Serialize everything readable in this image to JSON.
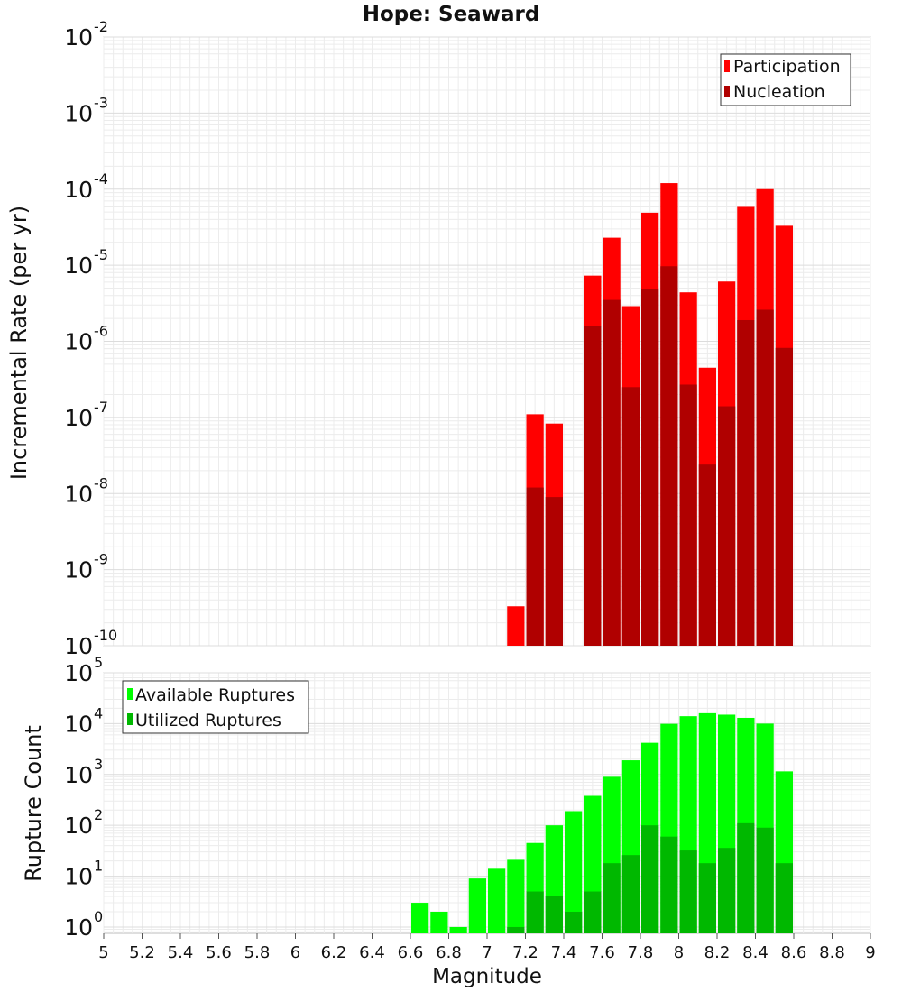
{
  "chart_data": [
    {
      "type": "bar",
      "title": "Hope: Seaward",
      "xlabel": "",
      "ylabel": "Incremental Rate (per yr)",
      "yscale": "log",
      "ylim": [
        1e-10,
        0.01
      ],
      "xlim": [
        5,
        9
      ],
      "bin_width": 0.1,
      "grid": true,
      "legend_position": "top-right",
      "y_tick_exponents": [
        -10,
        -9,
        -8,
        -7,
        -6,
        -5,
        -4,
        -3,
        -2
      ],
      "series": [
        {
          "name": "Participation",
          "color": "#ff0000",
          "points": [
            [
              7.15,
              3.3e-10
            ],
            [
              7.25,
              1.1e-07
            ],
            [
              7.35,
              8.3e-08
            ],
            [
              7.55,
              7.3e-06
            ],
            [
              7.65,
              2.3e-05
            ],
            [
              7.75,
              2.9e-06
            ],
            [
              7.85,
              4.9e-05
            ],
            [
              7.95,
              0.00012
            ],
            [
              8.05,
              4.4e-06
            ],
            [
              8.15,
              4.5e-07
            ],
            [
              8.25,
              6.1e-06
            ],
            [
              8.35,
              6e-05
            ],
            [
              8.45,
              0.0001
            ],
            [
              8.55,
              3.3e-05
            ]
          ]
        },
        {
          "name": "Nucleation",
          "color": "#b00000",
          "points": [
            [
              7.25,
              1.2e-08
            ],
            [
              7.35,
              9e-09
            ],
            [
              7.55,
              1.6e-06
            ],
            [
              7.65,
              3.5e-06
            ],
            [
              7.75,
              2.5e-07
            ],
            [
              7.85,
              4.8e-06
            ],
            [
              7.95,
              9.7e-06
            ],
            [
              8.05,
              2.7e-07
            ],
            [
              8.15,
              2.4e-08
            ],
            [
              8.25,
              1.4e-07
            ],
            [
              8.35,
              1.9e-06
            ],
            [
              8.45,
              2.6e-06
            ],
            [
              8.55,
              8.2e-07
            ]
          ]
        }
      ]
    },
    {
      "type": "bar",
      "title": "",
      "xlabel": "Magnitude",
      "ylabel": "Rupture Count",
      "yscale": "log",
      "ylim": [
        0.75,
        100000.0
      ],
      "xlim": [
        5,
        9
      ],
      "bin_width": 0.1,
      "grid": true,
      "legend_position": "top-left",
      "y_tick_exponents": [
        0,
        1,
        2,
        3,
        4,
        5
      ],
      "x_ticks": [
        "5",
        "5.2",
        "5.4",
        "5.6",
        "5.8",
        "6",
        "6.2",
        "6.4",
        "6.6",
        "6.8",
        "7",
        "7.2",
        "7.4",
        "7.6",
        "7.8",
        "8",
        "8.2",
        "8.4",
        "8.6",
        "8.8",
        "9"
      ],
      "series": [
        {
          "name": "Available Ruptures",
          "color": "#00ff00",
          "points": [
            [
              6.65,
              3
            ],
            [
              6.75,
              2
            ],
            [
              6.85,
              1
            ],
            [
              6.95,
              9
            ],
            [
              7.05,
              14
            ],
            [
              7.15,
              21
            ],
            [
              7.25,
              45
            ],
            [
              7.35,
              100
            ],
            [
              7.45,
              190
            ],
            [
              7.55,
              380
            ],
            [
              7.65,
              900
            ],
            [
              7.75,
              1900
            ],
            [
              7.85,
              4200
            ],
            [
              7.95,
              9900
            ],
            [
              8.05,
              14000
            ],
            [
              8.15,
              16000
            ],
            [
              8.25,
              15000
            ],
            [
              8.35,
              13000
            ],
            [
              8.45,
              10000
            ],
            [
              8.55,
              1150
            ]
          ]
        },
        {
          "name": "Utilized Ruptures",
          "color": "#00b800",
          "points": [
            [
              7.15,
              1
            ],
            [
              7.25,
              5
            ],
            [
              7.35,
              4
            ],
            [
              7.45,
              2
            ],
            [
              7.55,
              5
            ],
            [
              7.65,
              18
            ],
            [
              7.75,
              26
            ],
            [
              7.85,
              100
            ],
            [
              7.95,
              60
            ],
            [
              8.05,
              32
            ],
            [
              8.15,
              18
            ],
            [
              8.25,
              36
            ],
            [
              8.35,
              110
            ],
            [
              8.45,
              90
            ],
            [
              8.55,
              18
            ]
          ]
        }
      ]
    }
  ]
}
